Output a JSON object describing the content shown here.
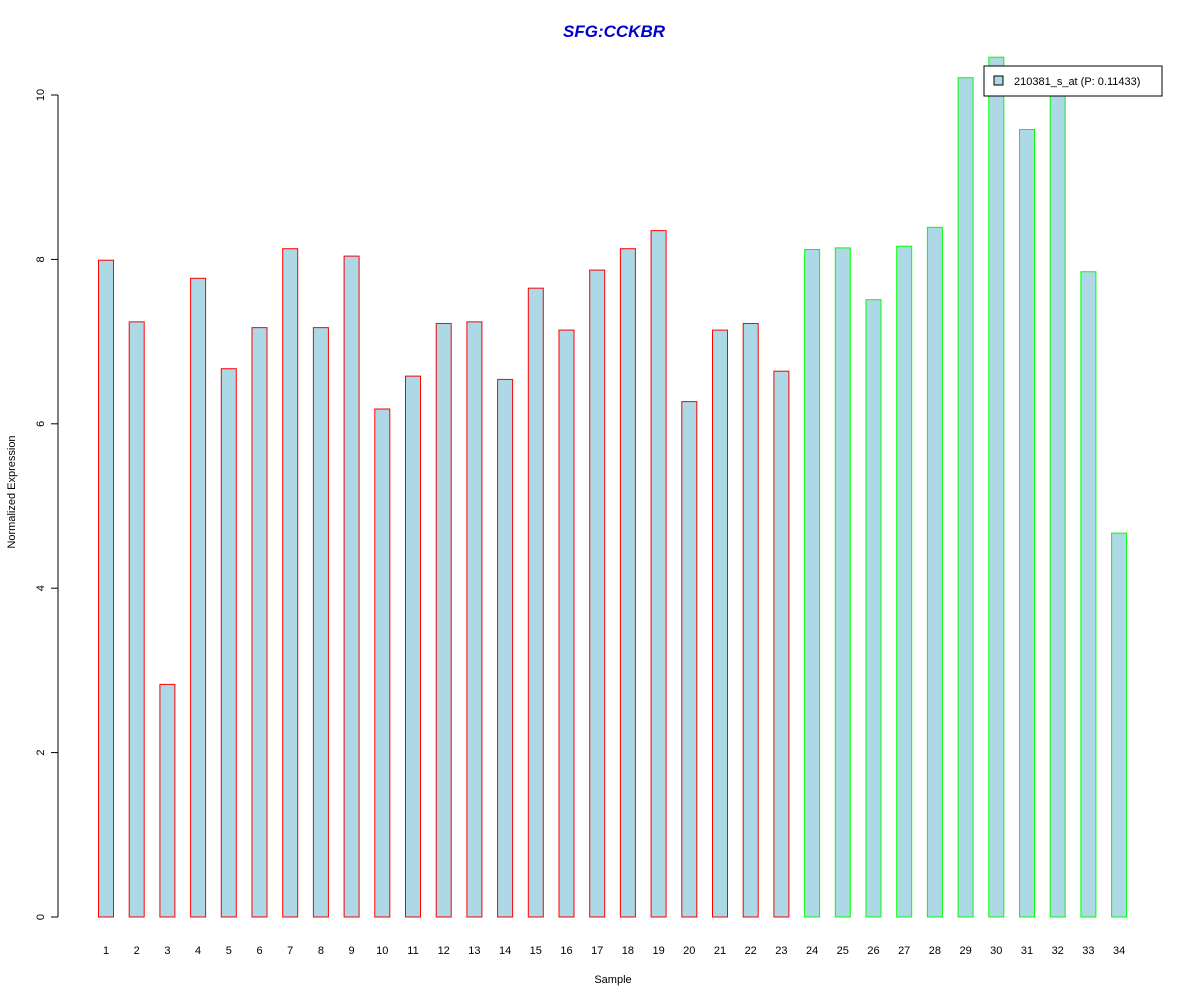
{
  "chart_data": {
    "type": "bar",
    "title": "SFG:CCKBR",
    "xlabel": "Sample",
    "ylabel": "Normalized Expression",
    "categories": [
      "1",
      "2",
      "3",
      "4",
      "5",
      "6",
      "7",
      "8",
      "9",
      "10",
      "11",
      "12",
      "13",
      "14",
      "15",
      "16",
      "17",
      "18",
      "19",
      "20",
      "21",
      "22",
      "23",
      "24",
      "25",
      "26",
      "27",
      "28",
      "29",
      "30",
      "31",
      "32",
      "33",
      "34"
    ],
    "series": [
      {
        "name": "210381_s_at (P: 0.11433)",
        "values": [
          7.99,
          7.24,
          2.83,
          7.77,
          6.67,
          7.17,
          8.13,
          7.17,
          8.04,
          6.18,
          6.58,
          7.22,
          7.24,
          6.54,
          7.65,
          7.14,
          7.87,
          8.13,
          8.35,
          6.27,
          7.14,
          7.22,
          6.64,
          8.12,
          8.14,
          7.51,
          8.16,
          8.39,
          10.21,
          10.46,
          9.58,
          10.08,
          7.85,
          4.67
        ]
      }
    ],
    "groups": [
      1,
      1,
      1,
      1,
      1,
      1,
      1,
      1,
      1,
      1,
      1,
      1,
      1,
      1,
      1,
      1,
      1,
      1,
      1,
      1,
      1,
      1,
      1,
      2,
      2,
      2,
      2,
      2,
      2,
      2,
      2,
      2,
      2,
      2
    ],
    "yticks": [
      0,
      2,
      4,
      6,
      8,
      10
    ],
    "ylim": [
      0,
      10.46
    ],
    "grid": false,
    "legend_position": "top-right",
    "colors": {
      "bar_fill": "#add8e6",
      "group1_border": "#ff0000",
      "group2_border": "#00ff00",
      "title": "#0000cd",
      "axis": "#000000"
    }
  }
}
